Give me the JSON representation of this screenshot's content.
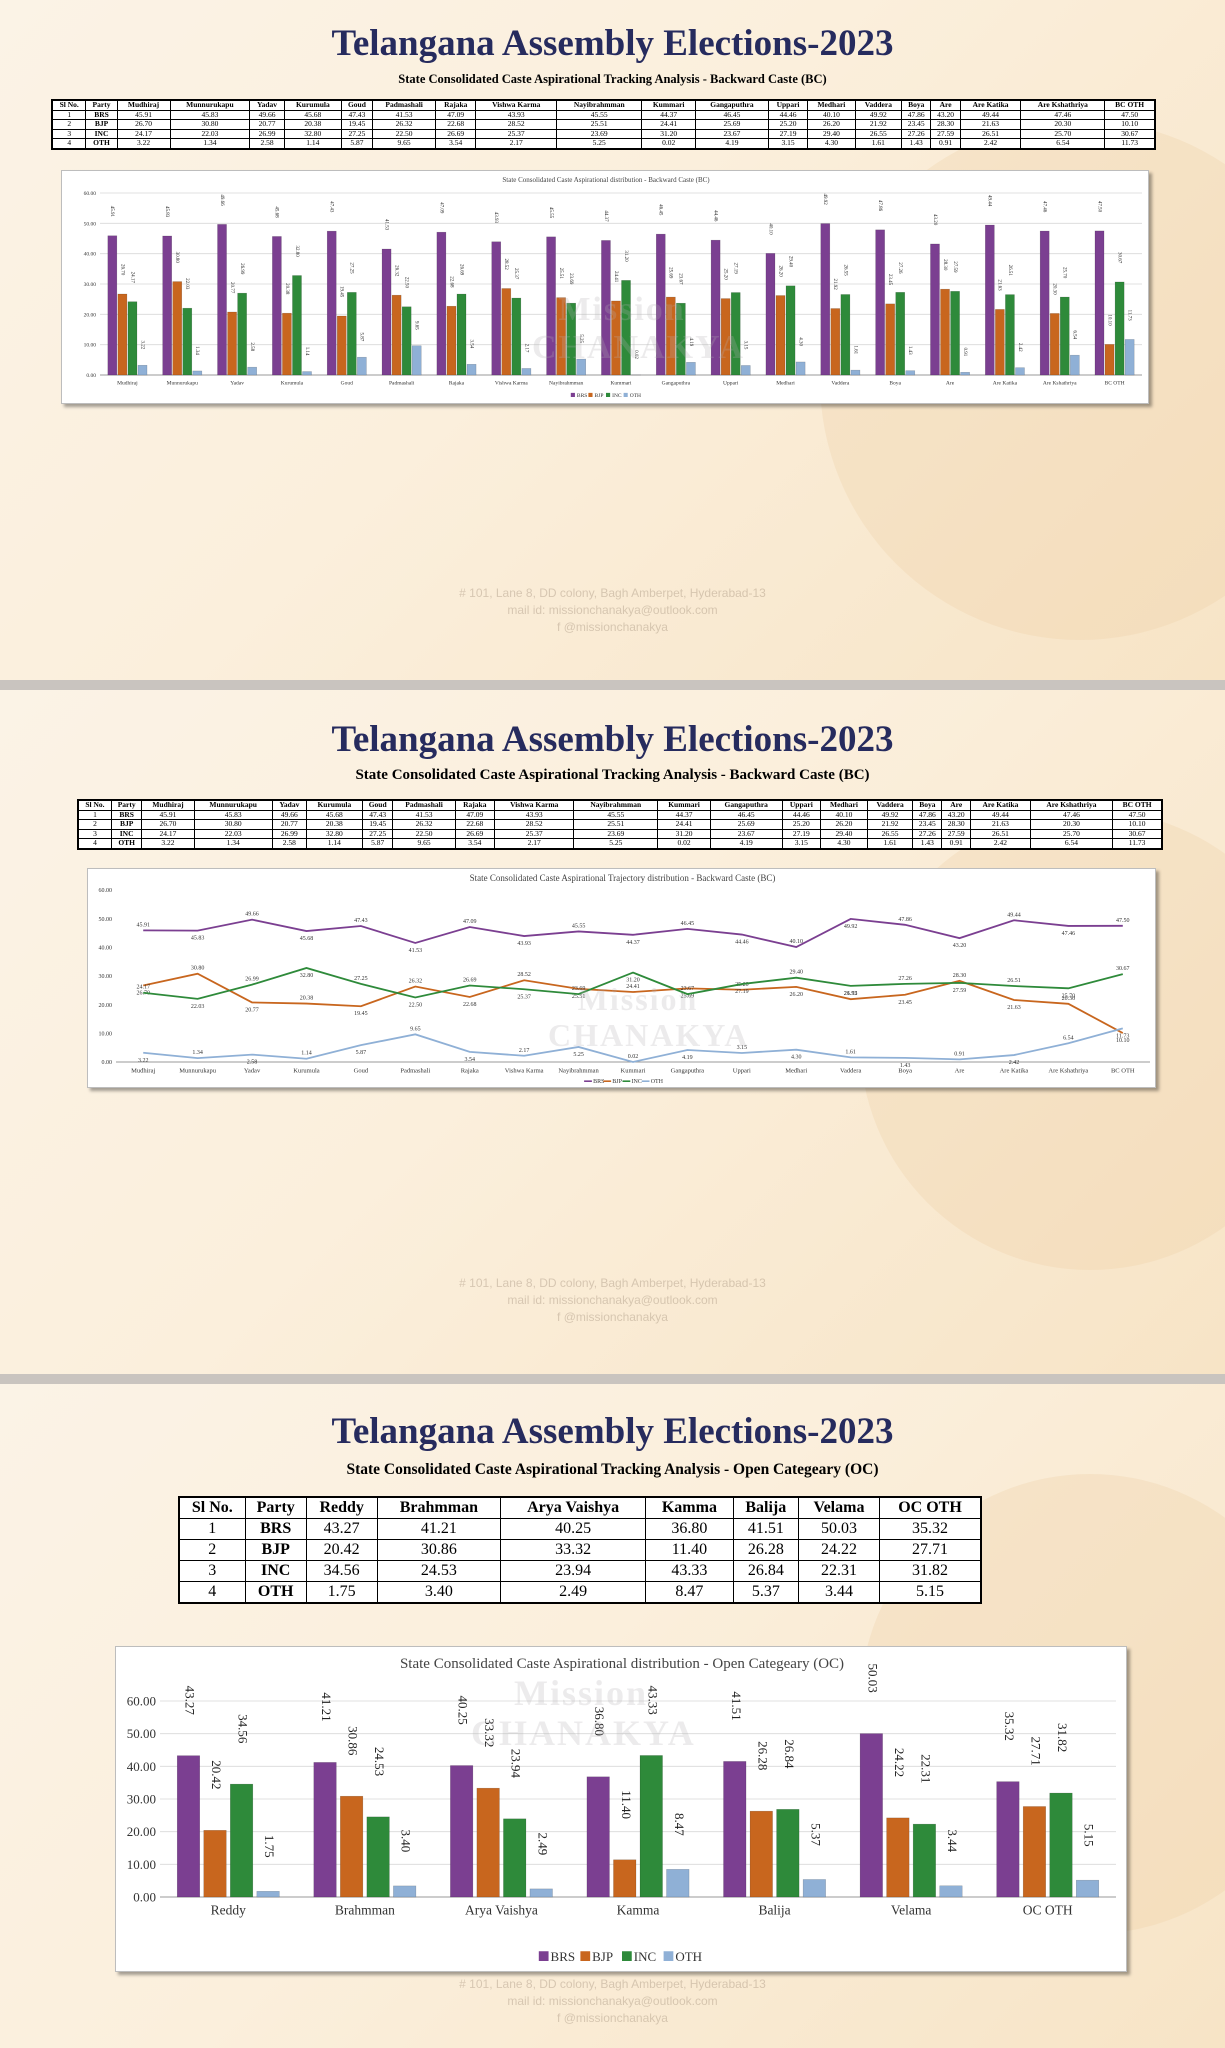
{
  "title": "Telangana Assembly Elections-2023",
  "watermark": {
    "line1": "Mission",
    "line2": "CHANAKYA"
  },
  "colors": {
    "BRS": "#7b3f91",
    "BJP": "#c8661e",
    "INC": "#2e8a3a",
    "OTH": "#8fb0d6",
    "title": "#262b5e"
  },
  "footer": {
    "address": "# 101, Lane 8, DD colony, Bagh Amberpet, Hyderabad-13",
    "mail": "mail id: missionchanakya@outlook.com",
    "social": "f  @missionchanakya"
  },
  "bc": {
    "subtitle": "State  Consolidated Caste Aspirational Tracking  Analysis - Backward Caste (BC)",
    "table_headers": [
      "Sl No.",
      "Party",
      "Mudhiraj",
      "Munnurukapu",
      "Yadav",
      "Kurumula",
      "Goud",
      "Padmashali",
      "Rajaka",
      "Vishwa Karma",
      "Nayibrahmman",
      "Kummari",
      "Gangaputhra",
      "Uppari",
      "Medhari",
      "Vaddera",
      "Boya",
      "Are",
      "Are Katika",
      "Are Kshathriya",
      "BC OTH"
    ],
    "table_rows": [
      [
        "1",
        "BRS",
        "45.91",
        "45.83",
        "49.66",
        "45.68",
        "47.43",
        "41.53",
        "47.09",
        "43.93",
        "45.55",
        "44.37",
        "46.45",
        "44.46",
        "40.10",
        "49.92",
        "47.86",
        "43.20",
        "49.44",
        "47.46",
        "47.50"
      ],
      [
        "2",
        "BJP",
        "26.70",
        "30.80",
        "20.77",
        "20.38",
        "19.45",
        "26.32",
        "22.68",
        "28.52",
        "25.51",
        "24.41",
        "25.69",
        "25.20",
        "26.20",
        "21.92",
        "23.45",
        "28.30",
        "21.63",
        "20.30",
        "10.10"
      ],
      [
        "3",
        "INC",
        "24.17",
        "22.03",
        "26.99",
        "32.80",
        "27.25",
        "22.50",
        "26.69",
        "25.37",
        "23.69",
        "31.20",
        "23.67",
        "27.19",
        "29.40",
        "26.55",
        "27.26",
        "27.59",
        "26.51",
        "25.70",
        "30.67"
      ],
      [
        "4",
        "OTH",
        "3.22",
        "1.34",
        "2.58",
        "1.14",
        "5.87",
        "9.65",
        "3.54",
        "2.17",
        "5.25",
        "0.02",
        "4.19",
        "3.15",
        "4.30",
        "1.61",
        "1.43",
        "0.91",
        "2.42",
        "6.54",
        "11.73"
      ]
    ],
    "bar_chart_title": "State  Consolidated Caste Aspirational distribution - Backward Caste (BC)",
    "line_chart_title": "State  Consolidated Caste Aspirational Trajectory  distribution - Backward Caste (BC)"
  },
  "oc": {
    "subtitle": "State  Consolidated Caste Aspirational Tracking  Analysis - Open Categeary (OC)",
    "table_headers": [
      "Sl No.",
      "Party",
      "Reddy",
      "Brahmman",
      "Arya Vaishya",
      "Kamma",
      "Balija",
      "Velama",
      "OC OTH"
    ],
    "table_rows": [
      [
        "1",
        "BRS",
        "43.27",
        "41.21",
        "40.25",
        "36.80",
        "41.51",
        "50.03",
        "35.32"
      ],
      [
        "2",
        "BJP",
        "20.42",
        "30.86",
        "33.32",
        "11.40",
        "26.28",
        "24.22",
        "27.71"
      ],
      [
        "3",
        "INC",
        "34.56",
        "24.53",
        "23.94",
        "43.33",
        "26.84",
        "22.31",
        "31.82"
      ],
      [
        "4",
        "OTH",
        "1.75",
        "3.40",
        "2.49",
        "8.47",
        "5.37",
        "3.44",
        "5.15"
      ]
    ],
    "bar_chart_title": "State  Consolidated Caste Aspirational distribution - Open Categeary (OC)"
  },
  "chart_data": [
    {
      "type": "bar",
      "title": "State  Consolidated Caste Aspirational distribution - Backward Caste (BC)",
      "categories": [
        "Mudhiraj",
        "Munnurukapu",
        "Yadav",
        "Kurumula",
        "Goud",
        "Padmashali",
        "Rajaka",
        "Vishwa Karma",
        "Nayibrahmman",
        "Kummari",
        "Gangaputhra",
        "Uppari",
        "Medhari",
        "Vaddera",
        "Boya",
        "Are",
        "Are Katika",
        "Are Kshathriya",
        "BC OTH"
      ],
      "series": [
        {
          "name": "BRS",
          "values": [
            45.91,
            45.83,
            49.66,
            45.68,
            47.43,
            41.53,
            47.09,
            43.93,
            45.55,
            44.37,
            46.45,
            44.46,
            40.1,
            49.92,
            47.86,
            43.2,
            49.44,
            47.46,
            47.5
          ]
        },
        {
          "name": "BJP",
          "values": [
            26.7,
            30.8,
            20.77,
            20.38,
            19.45,
            26.32,
            22.68,
            28.52,
            25.51,
            24.41,
            25.69,
            25.2,
            26.2,
            21.92,
            23.45,
            28.3,
            21.63,
            20.3,
            10.1
          ]
        },
        {
          "name": "INC",
          "values": [
            24.17,
            22.03,
            26.99,
            32.8,
            27.25,
            22.5,
            26.69,
            25.37,
            23.69,
            31.2,
            23.67,
            27.19,
            29.4,
            26.55,
            27.26,
            27.59,
            26.51,
            25.7,
            30.67
          ]
        },
        {
          "name": "OTH",
          "values": [
            3.22,
            1.34,
            2.58,
            1.14,
            5.87,
            9.65,
            3.54,
            2.17,
            5.25,
            0.02,
            4.19,
            3.15,
            4.3,
            1.61,
            1.43,
            0.91,
            2.42,
            6.54,
            11.73
          ]
        }
      ],
      "ylim": [
        0,
        60
      ],
      "yticks": [
        "0.00",
        "10.00",
        "20.00",
        "30.00",
        "40.00",
        "50.00",
        "60.00"
      ],
      "grid": true,
      "legend": "bottom"
    },
    {
      "type": "line",
      "title": "State  Consolidated Caste Aspirational Trajectory  distribution - Backward Caste (BC)",
      "categories": [
        "Mudhiraj",
        "Munnurukapu",
        "Yadav",
        "Kurumula",
        "Goud",
        "Padmashali",
        "Rajaka",
        "Vishwa Karma",
        "Nayibrahmman",
        "Kummari",
        "Gangaputhra",
        "Uppari",
        "Medhari",
        "Vaddera",
        "Boya",
        "Are",
        "Are Katika",
        "Are Kshathriya",
        "BC OTH"
      ],
      "series": [
        {
          "name": "BRS",
          "values": [
            45.91,
            45.83,
            49.66,
            45.68,
            47.43,
            41.53,
            47.09,
            43.93,
            45.55,
            44.37,
            46.45,
            44.46,
            40.1,
            49.92,
            47.86,
            43.2,
            49.44,
            47.46,
            47.5
          ]
        },
        {
          "name": "BJP",
          "values": [
            26.7,
            30.8,
            20.77,
            20.38,
            19.45,
            26.32,
            22.68,
            28.52,
            25.51,
            24.41,
            25.69,
            25.2,
            26.2,
            21.92,
            23.45,
            28.3,
            21.63,
            20.3,
            10.1
          ]
        },
        {
          "name": "INC",
          "values": [
            24.17,
            22.03,
            26.99,
            32.8,
            27.25,
            22.5,
            26.69,
            25.37,
            23.69,
            31.2,
            23.67,
            27.19,
            29.4,
            26.55,
            27.26,
            27.59,
            26.51,
            25.7,
            30.67
          ]
        },
        {
          "name": "OTH",
          "values": [
            3.22,
            1.34,
            2.58,
            1.14,
            5.87,
            9.65,
            3.54,
            2.17,
            5.25,
            0.02,
            4.19,
            3.15,
            4.3,
            1.61,
            1.43,
            0.91,
            2.42,
            6.54,
            11.73
          ]
        }
      ],
      "ylim": [
        0,
        60
      ],
      "yticks": [
        "0.00",
        "10.00",
        "20.00",
        "30.00",
        "40.00",
        "50.00",
        "60.00"
      ],
      "grid": false,
      "legend": "bottom"
    },
    {
      "type": "bar",
      "title": "State  Consolidated Caste Aspirational distribution - Open Categeary (OC)",
      "categories": [
        "Reddy",
        "Brahmman",
        "Arya Vaishya",
        "Kamma",
        "Balija",
        "Velama",
        "OC OTH"
      ],
      "series": [
        {
          "name": "BRS",
          "values": [
            43.27,
            41.21,
            40.25,
            36.8,
            41.51,
            50.03,
            35.32
          ]
        },
        {
          "name": "BJP",
          "values": [
            20.42,
            30.86,
            33.32,
            11.4,
            26.28,
            24.22,
            27.71
          ]
        },
        {
          "name": "INC",
          "values": [
            34.56,
            24.53,
            23.94,
            43.33,
            26.84,
            22.31,
            31.82
          ]
        },
        {
          "name": "OTH",
          "values": [
            1.75,
            3.4,
            2.49,
            8.47,
            5.37,
            3.44,
            5.15
          ]
        }
      ],
      "ylim": [
        0,
        60
      ],
      "yticks": [
        "0.00",
        "10.00",
        "20.00",
        "30.00",
        "40.00",
        "50.00",
        "60.00"
      ],
      "grid": true,
      "legend": "bottom"
    }
  ]
}
